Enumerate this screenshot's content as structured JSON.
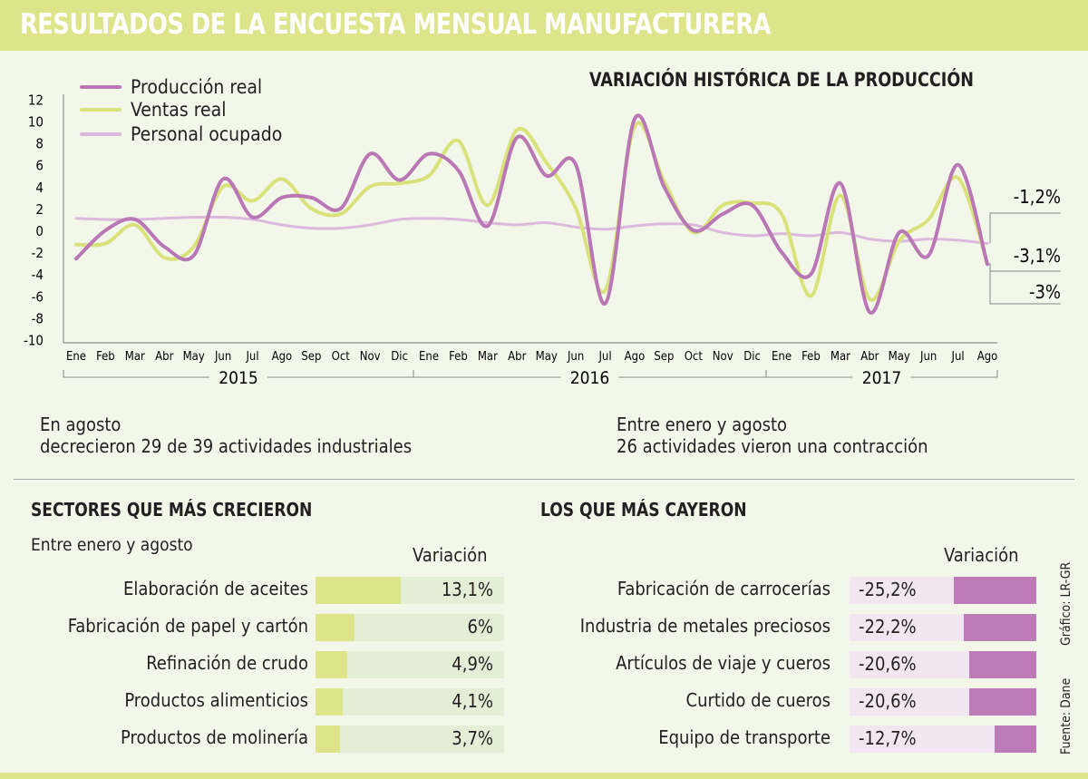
{
  "header": {
    "title": "RESULTADOS DE LA ENCUESTA MENSUAL MANUFACTURERA"
  },
  "chart_data": {
    "type": "line",
    "title": "VARIACIÓN HISTÓRICA DE LA PRODUCCIÓN",
    "ylim": [
      -10,
      12
    ],
    "yticks": [
      "12",
      "10",
      "8",
      "6",
      "4",
      "2",
      "0",
      "-2",
      "-4",
      "-6",
      "-8",
      "-10"
    ],
    "x": [
      "Ene",
      "Feb",
      "Mar",
      "Abr",
      "May",
      "Jun",
      "Jul",
      "Ago",
      "Sep",
      "Oct",
      "Nov",
      "Dic",
      "Ene",
      "Feb",
      "Mar",
      "Abr",
      "May",
      "Jun",
      "Jul",
      "Ago",
      "Sep",
      "Oct",
      "Nov",
      "Dic",
      "Ene",
      "Feb",
      "Mar",
      "Abr",
      "May",
      "Jun",
      "Jul",
      "Ago"
    ],
    "years": [
      "2015",
      "2016",
      "2017"
    ],
    "series": [
      {
        "name": "Producción real",
        "color": "#b978b5",
        "values": [
          -2.6,
          0,
          1,
          -1.5,
          -2.3,
          4.7,
          1.2,
          3,
          3,
          2,
          7,
          4.6,
          7,
          5.5,
          0.4,
          8.5,
          5,
          6,
          -6.7,
          10.2,
          4,
          0,
          1.5,
          2.3,
          -2,
          -4,
          4.3,
          -7.5,
          -0.2,
          -2.3,
          6,
          -3.1
        ]
      },
      {
        "name": "Ventas real",
        "color": "#d9e27a",
        "values": [
          -1.3,
          -1.2,
          0.5,
          -2.5,
          -1.5,
          4,
          2.7,
          4.7,
          2,
          1.5,
          4,
          4.3,
          5,
          8.2,
          2.3,
          9.2,
          6.2,
          2,
          -5.5,
          9.5,
          4.5,
          -0.2,
          2.3,
          2.5,
          1.5,
          -6,
          3.2,
          -6.3,
          -1,
          1,
          4.8,
          -3
        ]
      },
      {
        "name": "Personal ocupado",
        "color": "#dcb8dc",
        "values": [
          1.1,
          1,
          1,
          1.1,
          1.2,
          1.2,
          1,
          0.5,
          0.2,
          0.2,
          0.5,
          1,
          1.1,
          1,
          0.7,
          0.5,
          0.7,
          0.3,
          0.1,
          0.4,
          0.6,
          0.5,
          -0.2,
          -0.5,
          -0.3,
          -0.5,
          -0.2,
          -0.8,
          -1,
          -0.8,
          -0.9,
          -1.2
        ]
      }
    ],
    "annotations": [
      "-1,2%",
      "-3,1%",
      "-3%"
    ],
    "legend": "top-left"
  },
  "notes": [
    {
      "title": "En agosto",
      "text": "decrecieron 29 de 39 actividades industriales"
    },
    {
      "title": "Entre enero y agosto",
      "text": "26 actividades vieron una contracción"
    }
  ],
  "grew": {
    "title": "SECTORES QUE MÁS CRECIERON",
    "subtitle": "Entre enero y agosto",
    "header": "Variación",
    "items": [
      {
        "label": "Elaboración de aceites",
        "value": 13.1,
        "text": "13,1%"
      },
      {
        "label": "Fabricación de papel y cartón",
        "value": 6,
        "text": "6%"
      },
      {
        "label": "Refinación de crudo",
        "value": 4.9,
        "text": "4,9%"
      },
      {
        "label": "Productos alimenticios",
        "value": 4.1,
        "text": "4,1%"
      },
      {
        "label": "Productos de molinería",
        "value": 3.7,
        "text": "3,7%"
      }
    ]
  },
  "fell": {
    "title": "LOS QUE MÁS CAYERON",
    "header": "Variación",
    "items": [
      {
        "label": "Fabricación de carrocerías",
        "value": -25.2,
        "text": "-25,2%"
      },
      {
        "label": "Industria de metales preciosos",
        "value": -22.2,
        "text": "-22,2%"
      },
      {
        "label": "Artículos de viaje y cueros",
        "value": -20.6,
        "text": "-20,6%"
      },
      {
        "label": "Curtido de cueros",
        "value": -20.6,
        "text": "-20,6%"
      },
      {
        "label": "Equipo de transporte",
        "value": -12.7,
        "text": "-12,7%"
      }
    ]
  },
  "credits": {
    "graphic": "Gráfico: LR-GR",
    "source": "Fuente: Dane"
  }
}
